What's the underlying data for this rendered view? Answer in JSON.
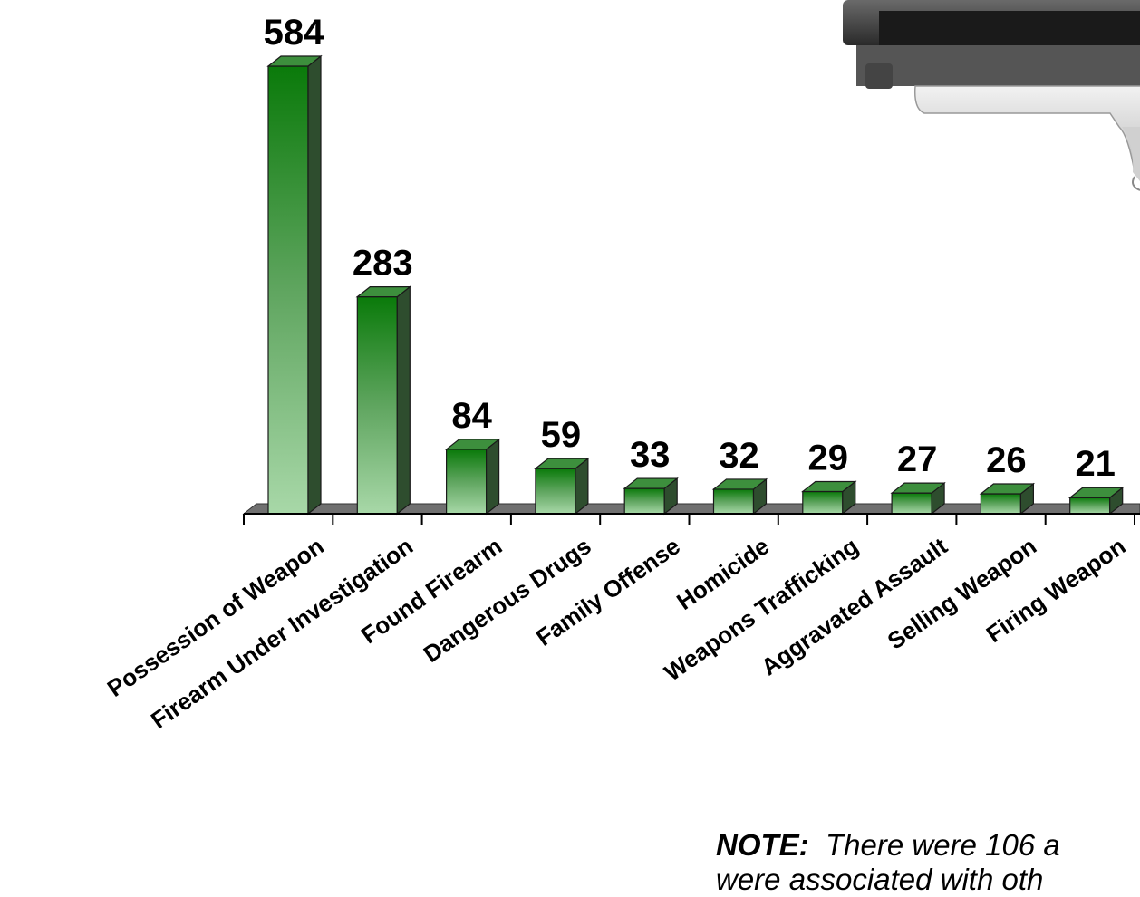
{
  "chart_data": {
    "type": "bar",
    "categories": [
      "Possession of Weapon",
      "Firearm Under Investigation",
      "Found Firearm",
      "Dangerous Drugs",
      "Family Offense",
      "Homicide",
      "Weapons Trafficking",
      "Aggravated Assault",
      "Selling Weapon",
      "Firing Weapon"
    ],
    "values": [
      584,
      283,
      84,
      59,
      33,
      32,
      29,
      27,
      26,
      21
    ],
    "title": "",
    "xlabel": "",
    "ylabel": "",
    "ylim": [
      0,
      584
    ],
    "grid": false,
    "legend": "none",
    "bar_colors": {
      "top": "#0a7a0a",
      "bottom": "#a8d8a8",
      "side": "#2e4d2e",
      "floor": "#707070"
    }
  },
  "note": {
    "label": "NOTE:",
    "line1": "There were 106 a",
    "line2": "were associated with oth"
  }
}
